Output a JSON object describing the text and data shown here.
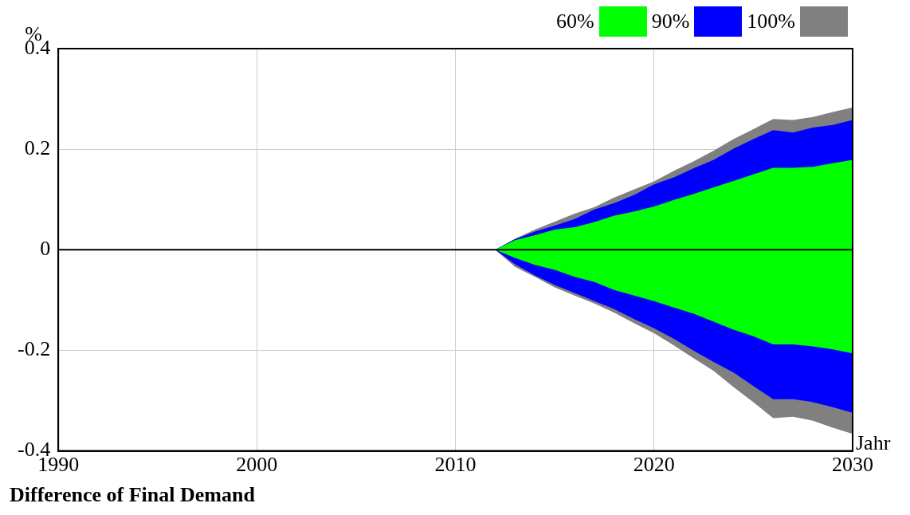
{
  "chart_data": {
    "type": "line",
    "title": "Difference of Final Demand",
    "xlabel": "Jahr",
    "ylabel": "%",
    "x": [
      1990,
      1991,
      1992,
      1993,
      1994,
      1995,
      1996,
      1997,
      1998,
      1999,
      2000,
      2001,
      2002,
      2003,
      2004,
      2005,
      2006,
      2007,
      2008,
      2009,
      2010,
      2011,
      2012,
      2013,
      2014,
      2015,
      2016,
      2017,
      2018,
      2019,
      2020,
      2021,
      2022,
      2023,
      2024,
      2025,
      2026,
      2027,
      2028,
      2029,
      2030
    ],
    "series": [
      {
        "color": "#000000",
        "values": [
          0,
          0,
          0,
          0,
          0,
          0,
          0,
          0,
          0,
          0,
          0,
          0,
          0,
          0,
          0,
          0,
          0,
          0,
          0,
          0,
          0,
          0,
          0,
          0,
          0,
          0,
          0,
          0,
          0,
          0,
          0,
          0,
          0,
          0,
          0,
          0,
          0,
          0,
          0,
          0,
          0
        ]
      },
      {
        "name": "60%",
        "color": "#00ff00",
        "values": [
          null,
          null,
          null,
          null,
          null,
          null,
          null,
          null,
          null,
          null,
          null,
          null,
          null,
          null,
          null,
          null,
          null,
          null,
          null,
          null,
          null,
          null,
          null,
          null,
          null,
          null,
          null,
          null,
          null,
          null,
          null,
          null,
          null,
          null,
          null,
          null,
          null,
          null,
          null,
          null,
          null
        ],
        "lower": [
          0,
          0,
          0,
          0,
          0,
          0,
          0,
          0,
          0,
          0,
          0,
          0,
          0,
          0,
          0,
          0,
          0,
          0,
          0,
          0,
          0,
          0,
          0,
          -0.016,
          -0.03,
          -0.04,
          -0.054,
          -0.064,
          -0.08,
          -0.091,
          -0.102,
          -0.115,
          -0.127,
          -0.143,
          -0.159,
          -0.172,
          -0.188,
          -0.188,
          -0.192,
          -0.198,
          -0.206
        ],
        "upper": [
          0,
          0,
          0,
          0,
          0,
          0,
          0,
          0,
          0,
          0,
          0,
          0,
          0,
          0,
          0,
          0,
          0,
          0,
          0,
          0,
          0,
          0,
          0,
          0.019,
          0.029,
          0.04,
          0.045,
          0.055,
          0.068,
          0.076,
          0.086,
          0.099,
          0.111,
          0.124,
          0.137,
          0.15,
          0.163,
          0.163,
          0.165,
          0.172,
          0.179
        ]
      },
      {
        "name": "90%",
        "color": "#0000ff",
        "values": [
          null,
          null,
          null,
          null,
          null,
          null,
          null,
          null,
          null,
          null,
          null,
          null,
          null,
          null,
          null,
          null,
          null,
          null,
          null,
          null,
          null,
          null,
          null,
          null,
          null,
          null,
          null,
          null,
          null,
          null,
          null,
          null,
          null,
          null,
          null,
          null,
          null,
          null,
          null,
          null,
          null
        ],
        "lower": [
          0,
          0,
          0,
          0,
          0,
          0,
          0,
          0,
          0,
          0,
          0,
          0,
          0,
          0,
          0,
          0,
          0,
          0,
          0,
          0,
          0,
          0,
          0,
          -0.029,
          -0.051,
          -0.07,
          -0.086,
          -0.102,
          -0.118,
          -0.138,
          -0.156,
          -0.177,
          -0.201,
          -0.223,
          -0.244,
          -0.271,
          -0.297,
          -0.297,
          -0.303,
          -0.313,
          -0.324
        ],
        "upper": [
          0,
          0,
          0,
          0,
          0,
          0,
          0,
          0,
          0,
          0,
          0,
          0,
          0,
          0,
          0,
          0,
          0,
          0,
          0,
          0,
          0,
          0,
          0,
          0.021,
          0.036,
          0.048,
          0.061,
          0.08,
          0.093,
          0.109,
          0.13,
          0.144,
          0.162,
          0.179,
          0.201,
          0.22,
          0.238,
          0.233,
          0.243,
          0.248,
          0.258
        ]
      },
      {
        "name": "100%",
        "color": "#808080",
        "values": [
          null,
          null,
          null,
          null,
          null,
          null,
          null,
          null,
          null,
          null,
          null,
          null,
          null,
          null,
          null,
          null,
          null,
          null,
          null,
          null,
          null,
          null,
          null,
          null,
          null,
          null,
          null,
          null,
          null,
          null,
          null,
          null,
          null,
          null,
          null,
          null,
          null,
          null,
          null,
          null,
          null
        ],
        "lower": [
          0,
          0,
          0,
          0,
          0,
          0,
          0,
          0,
          0,
          0,
          0,
          0,
          0,
          0,
          0,
          0,
          0,
          0,
          0,
          0,
          0,
          0,
          0,
          -0.034,
          -0.054,
          -0.075,
          -0.091,
          -0.107,
          -0.125,
          -0.146,
          -0.166,
          -0.19,
          -0.216,
          -0.241,
          -0.273,
          -0.303,
          -0.335,
          -0.332,
          -0.34,
          -0.354,
          -0.366
        ],
        "upper": [
          0,
          0,
          0,
          0,
          0,
          0,
          0,
          0,
          0,
          0,
          0,
          0,
          0,
          0,
          0,
          0,
          0,
          0,
          0,
          0,
          0,
          0,
          0,
          0.022,
          0.04,
          0.056,
          0.072,
          0.085,
          0.104,
          0.12,
          0.136,
          0.157,
          0.176,
          0.197,
          0.22,
          0.24,
          0.26,
          0.258,
          0.264,
          0.274,
          0.283
        ]
      }
    ],
    "xlim": [
      1990,
      2030
    ],
    "xticks": [
      1990,
      2000,
      2010,
      2020,
      2030
    ],
    "ylim": [
      -0.4,
      0.4
    ],
    "yticks": [
      -0.4,
      -0.2,
      0,
      0.2,
      0.4
    ],
    "grid": true,
    "legend": "top right",
    "line_style": "solid"
  }
}
